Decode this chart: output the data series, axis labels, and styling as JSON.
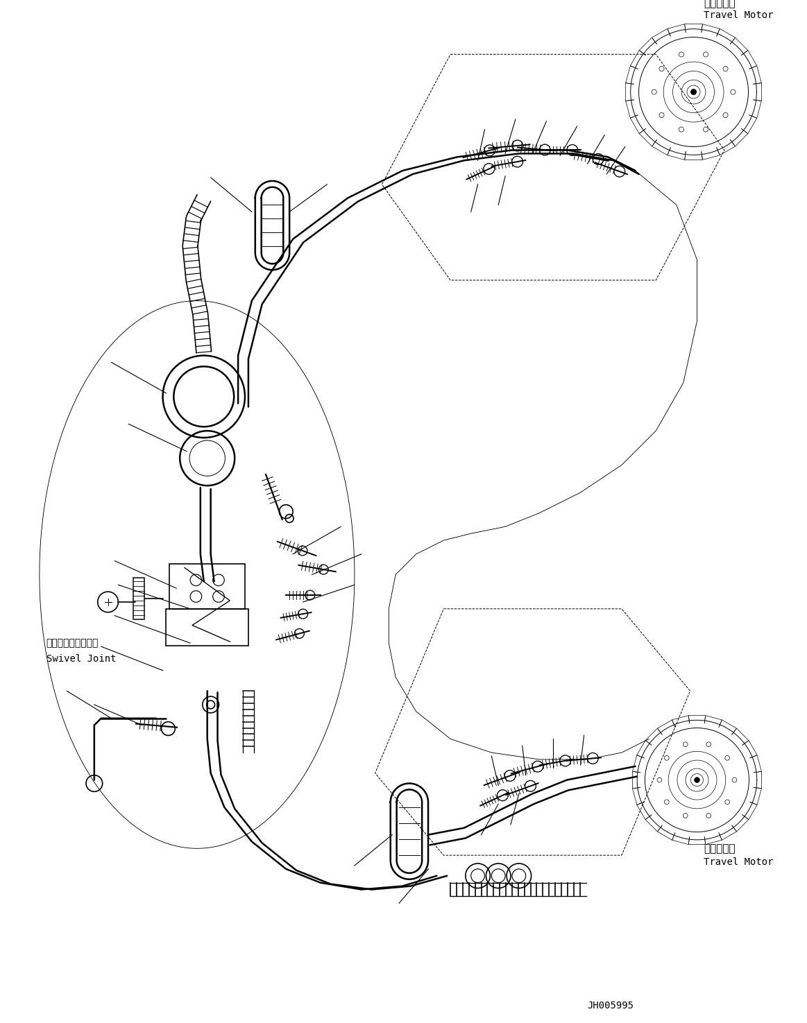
{
  "bg_color": "#ffffff",
  "line_color": "#000000",
  "fig_width": 11.63,
  "fig_height": 14.75,
  "label_top_right_jp": "走行モータ",
  "label_top_right_en": "Travel Motor",
  "label_bottom_right_jp": "走行モータ",
  "label_bottom_right_en": "Travel Motor",
  "label_swivel_jp": "スイベルジョイント",
  "label_swivel_en": "Swivel Joint",
  "footer_text": "JH005995",
  "lw": 1.2,
  "lw2": 1.8,
  "lw_thin": 0.7
}
